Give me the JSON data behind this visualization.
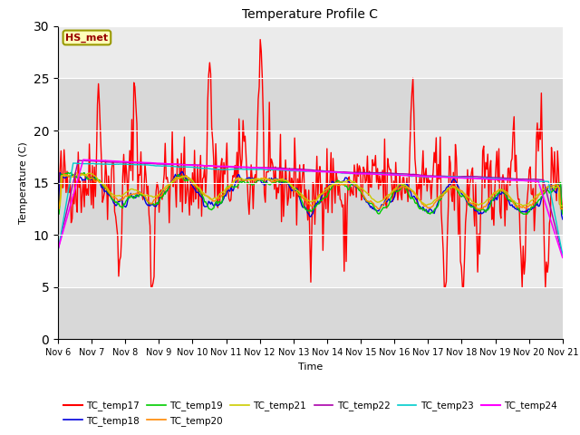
{
  "title": "Temperature Profile C",
  "xlabel": "Time",
  "ylabel": "Temperature (C)",
  "ylim": [
    0,
    30
  ],
  "annotation": "HS_met",
  "plot_bg_light": "#ebebeb",
  "plot_bg_dark": "#d8d8d8",
  "series": {
    "TC_temp17": {
      "color": "#ff0000",
      "lw": 1.0
    },
    "TC_temp18": {
      "color": "#0000dd",
      "lw": 1.0
    },
    "TC_temp19": {
      "color": "#00cc00",
      "lw": 1.0
    },
    "TC_temp20": {
      "color": "#ff8800",
      "lw": 1.0
    },
    "TC_temp21": {
      "color": "#cccc00",
      "lw": 1.0
    },
    "TC_temp22": {
      "color": "#aa00aa",
      "lw": 1.0
    },
    "TC_temp23": {
      "color": "#00cccc",
      "lw": 1.0
    },
    "TC_temp24": {
      "color": "#ff00ff",
      "lw": 1.2
    }
  },
  "xtick_labels": [
    "Nov 6",
    "Nov 7",
    "Nov 8",
    "Nov 9",
    "Nov 10",
    "Nov 11",
    "Nov 12",
    "Nov 13",
    "Nov 14",
    "Nov 15",
    "Nov 16",
    "Nov 17",
    "Nov 18",
    "Nov 19",
    "Nov 20",
    "Nov 21"
  ],
  "n_points": 500,
  "seed": 42
}
